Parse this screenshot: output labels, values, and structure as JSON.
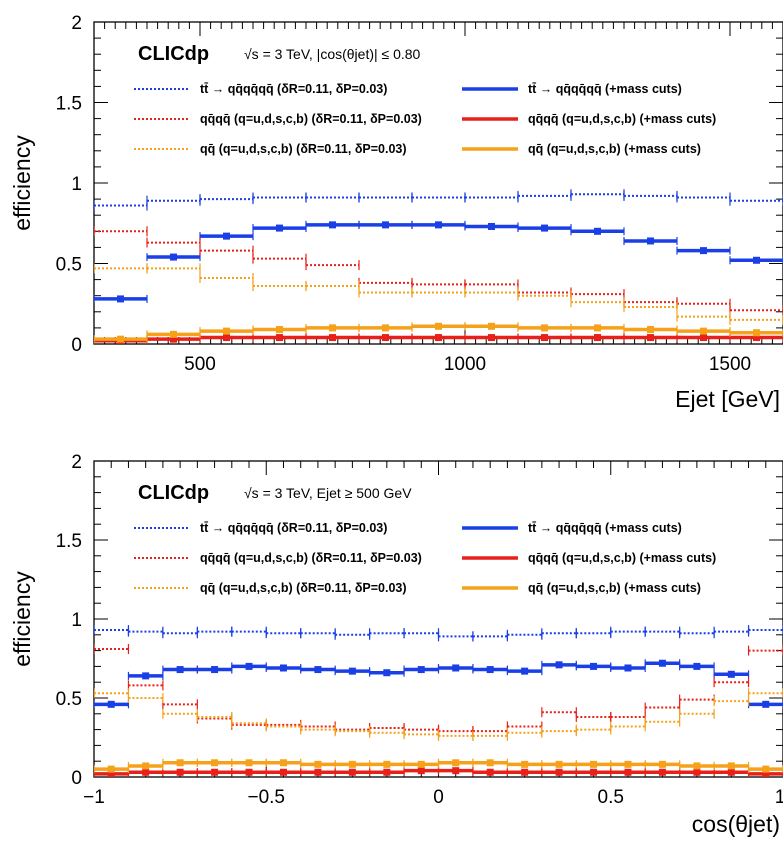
{
  "colors": {
    "blue": "#1a3fe6",
    "red": "#e8201a",
    "orange": "#f5a11a"
  },
  "chart_data": [
    {
      "type": "line",
      "brand": "CLICdp",
      "condition": "√s = 3 TeV, |cos(θjet)| ≤ 0.80",
      "ylabel": "efficiency",
      "xlabel": "Ejet [GeV]",
      "xlim": [
        300,
        1600
      ],
      "ylim": [
        0,
        2
      ],
      "x_ticks": [
        "500",
        "1000",
        "1500"
      ],
      "y_ticks": [
        "0",
        "0.5",
        "1",
        "1.5",
        "2"
      ],
      "legend": [
        "tt̄ → qq̄qq̄qq̄ (δR=0.11, δP=0.03)",
        "tt̄ → qq̄qq̄qq̄ (+mass cuts)",
        "qq̄qq̄ (q=u,d,s,c,b) (δR=0.11, δP=0.03)",
        "qq̄qq̄ (q=u,d,s,c,b) (+mass cuts)",
        "qq̄ (q=u,d,s,c,b) (δR=0.11, δP=0.03)",
        "qq̄ (q=u,d,s,c,b) (+mass cuts)"
      ],
      "series": [
        {
          "color": "blue",
          "style": "dotted",
          "points": [
            [
              350,
              0.86
            ],
            [
              450,
              0.89
            ],
            [
              550,
              0.9
            ],
            [
              650,
              0.91
            ],
            [
              750,
              0.91
            ],
            [
              850,
              0.91
            ],
            [
              950,
              0.91
            ],
            [
              1050,
              0.91
            ],
            [
              1150,
              0.92
            ],
            [
              1250,
              0.93
            ],
            [
              1350,
              0.92
            ],
            [
              1450,
              0.91
            ],
            [
              1550,
              0.89
            ]
          ]
        },
        {
          "color": "blue",
          "style": "solid",
          "points": [
            [
              350,
              0.28
            ],
            [
              450,
              0.54
            ],
            [
              550,
              0.67
            ],
            [
              650,
              0.72
            ],
            [
              750,
              0.74
            ],
            [
              850,
              0.74
            ],
            [
              950,
              0.74
            ],
            [
              1050,
              0.73
            ],
            [
              1150,
              0.72
            ],
            [
              1250,
              0.7
            ],
            [
              1350,
              0.64
            ],
            [
              1450,
              0.58
            ],
            [
              1550,
              0.52
            ]
          ]
        },
        {
          "color": "red",
          "style": "dotted",
          "points": [
            [
              350,
              0.7
            ],
            [
              450,
              0.63
            ],
            [
              550,
              0.58
            ],
            [
              650,
              0.53
            ],
            [
              750,
              0.49
            ],
            [
              850,
              0.38
            ],
            [
              950,
              0.37
            ],
            [
              1050,
              0.37
            ],
            [
              1150,
              0.32
            ],
            [
              1250,
              0.31
            ],
            [
              1350,
              0.26
            ],
            [
              1450,
              0.25
            ],
            [
              1550,
              0.21
            ]
          ]
        },
        {
          "color": "red",
          "style": "solid",
          "points": [
            [
              350,
              0.02
            ],
            [
              450,
              0.03
            ],
            [
              550,
              0.04
            ],
            [
              650,
              0.04
            ],
            [
              750,
              0.04
            ],
            [
              850,
              0.04
            ],
            [
              950,
              0.04
            ],
            [
              1050,
              0.04
            ],
            [
              1150,
              0.04
            ],
            [
              1250,
              0.04
            ],
            [
              1350,
              0.04
            ],
            [
              1450,
              0.04
            ],
            [
              1550,
              0.04
            ]
          ]
        },
        {
          "color": "orange",
          "style": "dotted",
          "points": [
            [
              350,
              0.47
            ],
            [
              450,
              0.47
            ],
            [
              550,
              0.41
            ],
            [
              650,
              0.36
            ],
            [
              750,
              0.36
            ],
            [
              850,
              0.32
            ],
            [
              950,
              0.32
            ],
            [
              1050,
              0.32
            ],
            [
              1150,
              0.3
            ],
            [
              1250,
              0.26
            ],
            [
              1350,
              0.23
            ],
            [
              1450,
              0.17
            ],
            [
              1550,
              0.15
            ]
          ]
        },
        {
          "color": "orange",
          "style": "solid",
          "points": [
            [
              350,
              0.03
            ],
            [
              450,
              0.06
            ],
            [
              550,
              0.08
            ],
            [
              650,
              0.09
            ],
            [
              750,
              0.1
            ],
            [
              850,
              0.1
            ],
            [
              950,
              0.11
            ],
            [
              1050,
              0.11
            ],
            [
              1150,
              0.1
            ],
            [
              1250,
              0.1
            ],
            [
              1350,
              0.09
            ],
            [
              1450,
              0.08
            ],
            [
              1550,
              0.07
            ]
          ]
        }
      ]
    },
    {
      "type": "line",
      "brand": "CLICdp",
      "condition": "√s = 3 TeV, Ejet ≥ 500 GeV",
      "ylabel": "efficiency",
      "xlabel": "cos(θjet)",
      "xlim": [
        -1,
        1
      ],
      "ylim": [
        0,
        2
      ],
      "x_ticks": [
        "−1",
        "−0.5",
        "0",
        "0.5",
        "1"
      ],
      "y_ticks": [
        "0",
        "0.5",
        "1",
        "1.5",
        "2"
      ],
      "legend": [
        "tt̄ → qq̄qq̄qq̄ (δR=0.11, δP=0.03)",
        "tt̄ → qq̄qq̄qq̄ (+mass cuts)",
        "qq̄qq̄ (q=u,d,s,c,b) (δR=0.11, δP=0.03)",
        "qq̄qq̄ (q=u,d,s,c,b) (+mass cuts)",
        "qq̄ (q=u,d,s,c,b) (δR=0.11, δP=0.03)",
        "qq̄ (q=u,d,s,c,b) (+mass cuts)"
      ],
      "series": [
        {
          "color": "blue",
          "style": "dotted",
          "points": [
            [
              -0.95,
              0.93
            ],
            [
              -0.85,
              0.92
            ],
            [
              -0.75,
              0.91
            ],
            [
              -0.65,
              0.92
            ],
            [
              -0.55,
              0.92
            ],
            [
              -0.45,
              0.91
            ],
            [
              -0.35,
              0.91
            ],
            [
              -0.25,
              0.9
            ],
            [
              -0.15,
              0.91
            ],
            [
              -0.05,
              0.91
            ],
            [
              0.05,
              0.89
            ],
            [
              0.15,
              0.89
            ],
            [
              0.25,
              0.9
            ],
            [
              0.35,
              0.91
            ],
            [
              0.45,
              0.91
            ],
            [
              0.55,
              0.92
            ],
            [
              0.65,
              0.92
            ],
            [
              0.75,
              0.91
            ],
            [
              0.85,
              0.92
            ],
            [
              0.95,
              0.93
            ]
          ]
        },
        {
          "color": "blue",
          "style": "solid",
          "points": [
            [
              -0.95,
              0.46
            ],
            [
              -0.85,
              0.64
            ],
            [
              -0.75,
              0.68
            ],
            [
              -0.65,
              0.68
            ],
            [
              -0.55,
              0.7
            ],
            [
              -0.45,
              0.69
            ],
            [
              -0.35,
              0.68
            ],
            [
              -0.25,
              0.67
            ],
            [
              -0.15,
              0.66
            ],
            [
              -0.05,
              0.68
            ],
            [
              0.05,
              0.69
            ],
            [
              0.15,
              0.68
            ],
            [
              0.25,
              0.67
            ],
            [
              0.35,
              0.71
            ],
            [
              0.45,
              0.7
            ],
            [
              0.55,
              0.69
            ],
            [
              0.65,
              0.72
            ],
            [
              0.75,
              0.7
            ],
            [
              0.85,
              0.65
            ],
            [
              0.95,
              0.46
            ]
          ]
        },
        {
          "color": "red",
          "style": "dotted",
          "points": [
            [
              -0.95,
              0.81
            ],
            [
              -0.85,
              0.58
            ],
            [
              -0.75,
              0.46
            ],
            [
              -0.65,
              0.37
            ],
            [
              -0.55,
              0.33
            ],
            [
              -0.45,
              0.33
            ],
            [
              -0.35,
              0.32
            ],
            [
              -0.25,
              0.3
            ],
            [
              -0.15,
              0.31
            ],
            [
              -0.05,
              0.3
            ],
            [
              0.05,
              0.29
            ],
            [
              0.15,
              0.29
            ],
            [
              0.25,
              0.32
            ],
            [
              0.35,
              0.41
            ],
            [
              0.45,
              0.38
            ],
            [
              0.55,
              0.38
            ],
            [
              0.65,
              0.44
            ],
            [
              0.75,
              0.49
            ],
            [
              0.85,
              0.6
            ],
            [
              0.95,
              0.8
            ]
          ]
        },
        {
          "color": "red",
          "style": "solid",
          "points": [
            [
              -0.95,
              0.02
            ],
            [
              -0.85,
              0.03
            ],
            [
              -0.75,
              0.03
            ],
            [
              -0.65,
              0.03
            ],
            [
              -0.55,
              0.03
            ],
            [
              -0.45,
              0.03
            ],
            [
              -0.35,
              0.03
            ],
            [
              -0.25,
              0.03
            ],
            [
              -0.15,
              0.03
            ],
            [
              -0.05,
              0.04
            ],
            [
              0.05,
              0.04
            ],
            [
              0.15,
              0.03
            ],
            [
              0.25,
              0.03
            ],
            [
              0.35,
              0.03
            ],
            [
              0.45,
              0.03
            ],
            [
              0.55,
              0.03
            ],
            [
              0.65,
              0.03
            ],
            [
              0.75,
              0.03
            ],
            [
              0.85,
              0.03
            ],
            [
              0.95,
              0.02
            ]
          ]
        },
        {
          "color": "orange",
          "style": "dotted",
          "points": [
            [
              -0.95,
              0.53
            ],
            [
              -0.85,
              0.5
            ],
            [
              -0.75,
              0.4
            ],
            [
              -0.65,
              0.38
            ],
            [
              -0.55,
              0.34
            ],
            [
              -0.45,
              0.32
            ],
            [
              -0.35,
              0.3
            ],
            [
              -0.25,
              0.29
            ],
            [
              -0.15,
              0.28
            ],
            [
              -0.05,
              0.27
            ],
            [
              0.05,
              0.26
            ],
            [
              0.15,
              0.26
            ],
            [
              0.25,
              0.28
            ],
            [
              0.35,
              0.29
            ],
            [
              0.45,
              0.3
            ],
            [
              0.55,
              0.32
            ],
            [
              0.65,
              0.35
            ],
            [
              0.75,
              0.4
            ],
            [
              0.85,
              0.48
            ],
            [
              0.95,
              0.53
            ]
          ]
        },
        {
          "color": "orange",
          "style": "solid",
          "points": [
            [
              -0.95,
              0.05
            ],
            [
              -0.85,
              0.07
            ],
            [
              -0.75,
              0.09
            ],
            [
              -0.65,
              0.09
            ],
            [
              -0.55,
              0.09
            ],
            [
              -0.45,
              0.09
            ],
            [
              -0.35,
              0.08
            ],
            [
              -0.25,
              0.08
            ],
            [
              -0.15,
              0.08
            ],
            [
              -0.05,
              0.08
            ],
            [
              0.05,
              0.09
            ],
            [
              0.15,
              0.09
            ],
            [
              0.25,
              0.08
            ],
            [
              0.35,
              0.08
            ],
            [
              0.45,
              0.08
            ],
            [
              0.55,
              0.08
            ],
            [
              0.65,
              0.08
            ],
            [
              0.75,
              0.07
            ],
            [
              0.85,
              0.07
            ],
            [
              0.95,
              0.05
            ]
          ]
        }
      ]
    }
  ]
}
